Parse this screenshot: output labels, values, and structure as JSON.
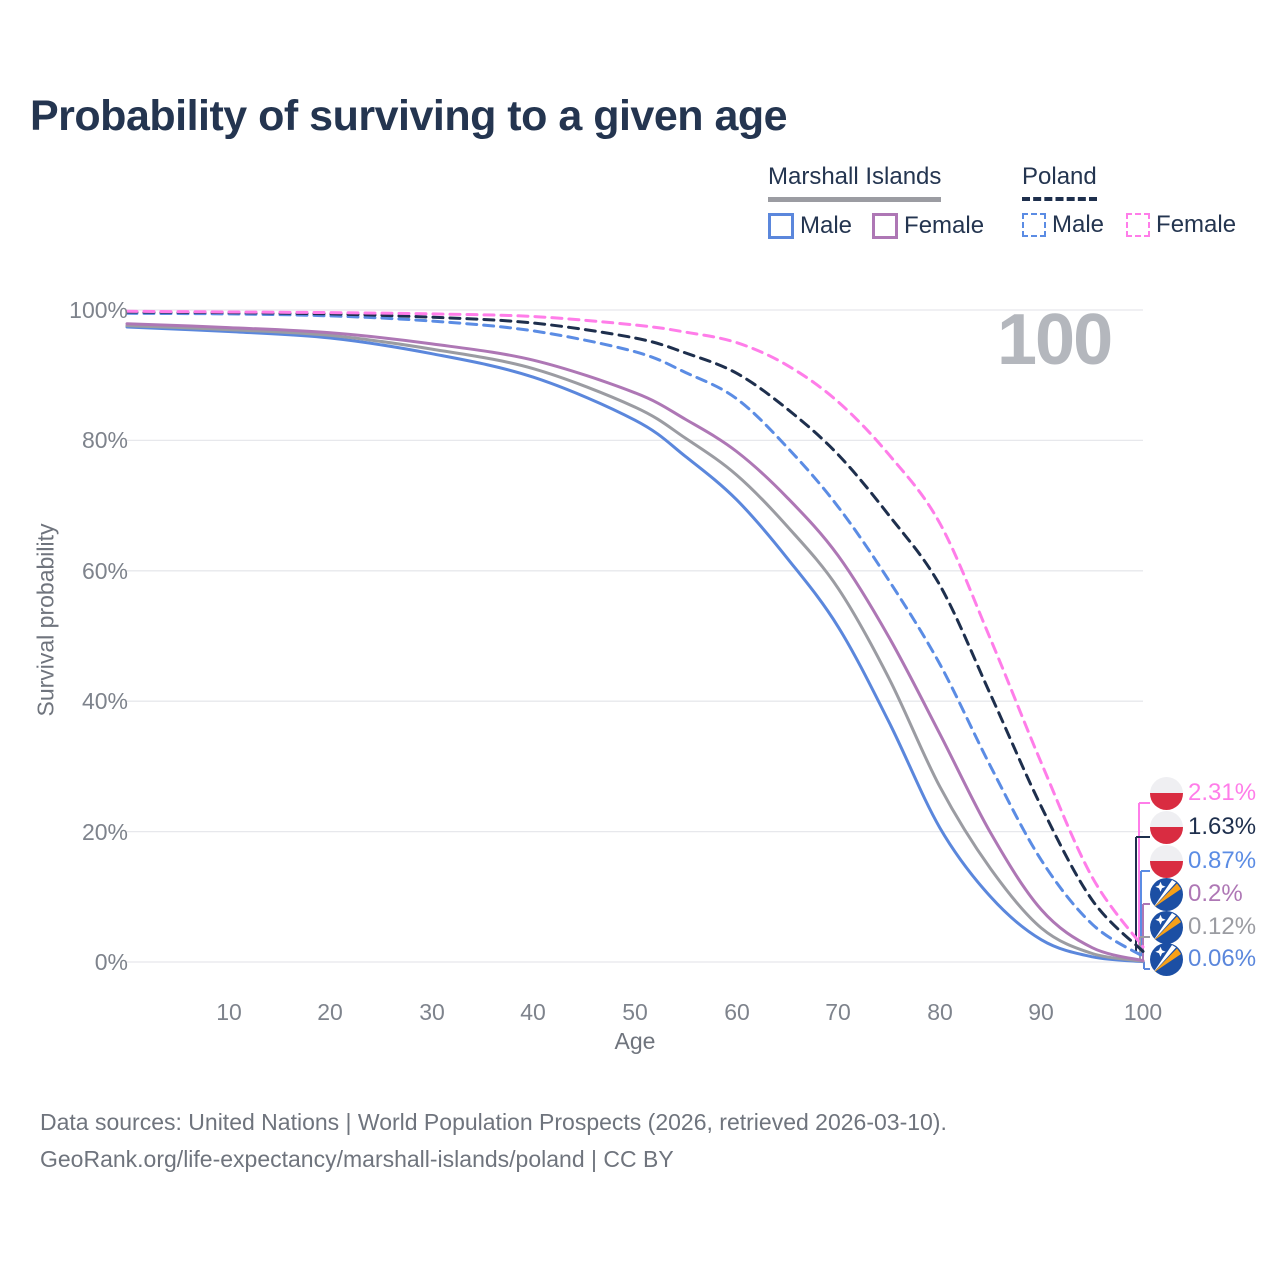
{
  "title": "Probability of surviving to a given age",
  "watermark": "100",
  "legend": {
    "groups": [
      {
        "country": "Marshall Islands",
        "line_style": "solid",
        "underline_color": "#9b9ca2",
        "items": [
          {
            "label": "Male",
            "color": "#5b87dc"
          },
          {
            "label": "Female",
            "color": "#ae77b5"
          }
        ]
      },
      {
        "country": "Poland",
        "line_style": "dashed",
        "underline_color": "#1e2f4d",
        "items": [
          {
            "label": "Male",
            "color": "#5b8ce4"
          },
          {
            "label": "Female",
            "color": "#ff7de9"
          }
        ]
      }
    ]
  },
  "chart_data": {
    "type": "line",
    "title": "Probability of surviving to a given age",
    "xlabel": "Age",
    "ylabel": "Survival probability",
    "xlim": [
      0,
      100
    ],
    "ylim": [
      0,
      100
    ],
    "grid": "horizontal",
    "legend_position": "top-right",
    "x_ticks": [
      10,
      20,
      30,
      40,
      50,
      60,
      70,
      80,
      90,
      100
    ],
    "y_tick_values": [
      0,
      20,
      40,
      60,
      80,
      100
    ],
    "y_tick_labels": [
      "0%",
      "20%",
      "40%",
      "60%",
      "80%",
      "100%"
    ],
    "x": [
      0,
      10,
      20,
      30,
      40,
      50,
      55,
      60,
      65,
      70,
      75,
      80,
      85,
      90,
      95,
      100
    ],
    "series": [
      {
        "name": "Poland Female",
        "country": "Poland",
        "sex": "Female",
        "color": "#ff7de9",
        "dashed": true,
        "flag": "poland",
        "end_label": "2.31%",
        "values": [
          99.8,
          99.7,
          99.6,
          99.4,
          99.0,
          97.7,
          96.6,
          95.0,
          91.5,
          85.9,
          77.8,
          67.3,
          49.5,
          30.5,
          13.0,
          2.31
        ]
      },
      {
        "name": "Poland",
        "country": "Poland",
        "sex": "Both",
        "color": "#1e2f4d",
        "dashed": true,
        "flag": "poland",
        "end_label": "1.63%",
        "values": [
          99.7,
          99.6,
          99.4,
          98.9,
          98.0,
          95.7,
          93.4,
          90.3,
          84.8,
          77.8,
          68.5,
          57.8,
          41.0,
          23.8,
          9.5,
          1.63
        ]
      },
      {
        "name": "Poland Male",
        "country": "Poland",
        "sex": "Male",
        "color": "#5b8ce4",
        "dashed": true,
        "flag": "poland",
        "end_label": "0.87%",
        "values": [
          99.5,
          99.4,
          99.1,
          98.3,
          96.8,
          93.6,
          90.4,
          86.4,
          78.9,
          69.8,
          58.5,
          45.7,
          30.0,
          15.6,
          5.8,
          0.87
        ]
      },
      {
        "name": "Marshall Islands Female",
        "country": "Marshall Islands",
        "sex": "Female",
        "color": "#ae77b5",
        "dashed": false,
        "flag": "marshall-islands",
        "end_label": "0.2%",
        "values": [
          97.9,
          97.3,
          96.5,
          94.8,
          92.3,
          87.3,
          83.2,
          78.3,
          71.2,
          62.3,
          49.8,
          35.0,
          19.8,
          8.0,
          2.2,
          0.2
        ]
      },
      {
        "name": "Marshall Islands",
        "country": "Marshall Islands",
        "sex": "Both",
        "color": "#9b9ca2",
        "dashed": false,
        "flag": "marshall-islands",
        "end_label": "0.12%",
        "values": [
          97.6,
          97.0,
          96.1,
          94.0,
          91.0,
          85.1,
          80.3,
          74.7,
          66.8,
          57.3,
          43.5,
          26.9,
          14.3,
          5.2,
          1.3,
          0.12
        ]
      },
      {
        "name": "Marshall Islands Male",
        "country": "Marshall Islands",
        "sex": "Male",
        "color": "#5b87dc",
        "dashed": false,
        "flag": "marshall-islands",
        "end_label": "0.06%",
        "values": [
          97.4,
          96.7,
          95.7,
          93.3,
          89.7,
          83.1,
          77.5,
          70.9,
          61.9,
          51.4,
          36.8,
          20.6,
          10.0,
          3.4,
          0.8,
          0.06
        ]
      }
    ]
  },
  "footer": {
    "line1": "Data sources: United Nations | World Population Prospects (2026, retrieved 2026-03-10).",
    "line2": "GeoRank.org/life-expectancy/marshall-islands/poland | CC BY"
  }
}
